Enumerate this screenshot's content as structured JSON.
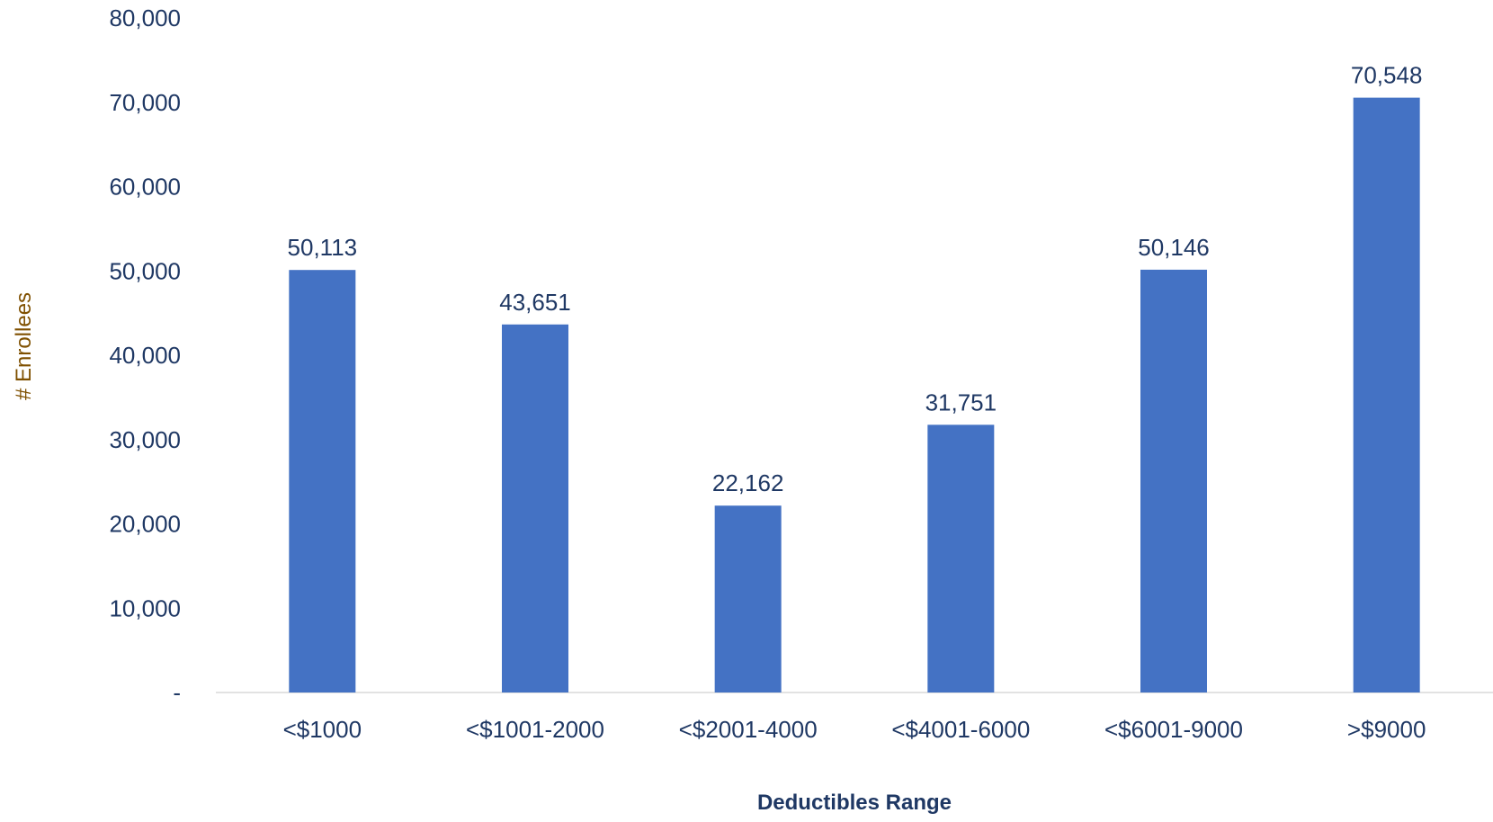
{
  "chart_data": {
    "type": "bar",
    "categories": [
      "<$1000",
      "<$1001-2000",
      "<$2001-4000",
      "<$4001-6000",
      "<$6001-9000",
      ">$9000"
    ],
    "values": [
      50113,
      43651,
      22162,
      31751,
      50146,
      70548
    ],
    "data_labels": [
      "50,113",
      "43,651",
      "22,162",
      "31,751",
      "50,146",
      "70,548"
    ],
    "xlabel": "Deductibles Range",
    "ylabel": "# Enrollees",
    "ylim": [
      0,
      80000
    ],
    "y_ticks": [
      {
        "value": 0,
        "label": "-"
      },
      {
        "value": 10000,
        "label": "10,000"
      },
      {
        "value": 20000,
        "label": "20,000"
      },
      {
        "value": 30000,
        "label": "30,000"
      },
      {
        "value": 40000,
        "label": "40,000"
      },
      {
        "value": 50000,
        "label": "50,000"
      },
      {
        "value": 60000,
        "label": "60,000"
      },
      {
        "value": 70000,
        "label": "70,000"
      },
      {
        "value": 80000,
        "label": "80,000"
      }
    ],
    "grid": false,
    "legend": "none",
    "colors": {
      "bar": "#4472C4",
      "tick_text": "#1F3864",
      "ylabel_text": "#7F5000",
      "xlabel_text": "#1F3864",
      "axis_line": "#D9D9D9"
    }
  }
}
